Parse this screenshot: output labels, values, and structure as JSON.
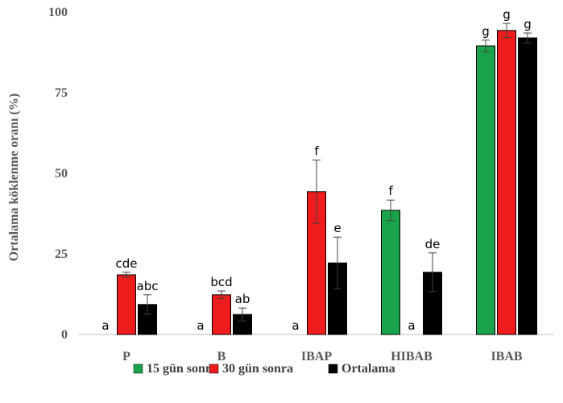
{
  "chart_data": {
    "type": "bar",
    "ylabel": "Ortalama köklenme oranı (%)",
    "xlabel": "",
    "ylim": [
      0,
      100
    ],
    "yticks": [
      0,
      25,
      50,
      75,
      100
    ],
    "grid": false,
    "legend_position": "bottom",
    "categories": [
      "P",
      "B",
      "IBAP",
      "HIBAB",
      "IBAB"
    ],
    "series": [
      {
        "name": "15 gün sonra",
        "color": "#1aa34a",
        "values": [
          0,
          0,
          0,
          38.5,
          89.5
        ],
        "errors": [
          0,
          0,
          0,
          3.2,
          1.8
        ],
        "labels": [
          "a",
          "a",
          "a",
          "f",
          "g"
        ]
      },
      {
        "name": "30 gün sonra",
        "color": "#ee1c1c",
        "values": [
          18.5,
          12.3,
          44.3,
          0,
          94.3
        ],
        "errors": [
          0.8,
          1.2,
          9.8,
          0,
          2.2
        ],
        "labels": [
          "cde",
          "bcd",
          "f",
          "a",
          "g"
        ]
      },
      {
        "name": "Ortalama",
        "color": "#000000",
        "values": [
          9.3,
          6.2,
          22.2,
          19.3,
          92.0
        ],
        "errors": [
          3.0,
          2.0,
          8.0,
          6.0,
          1.5
        ],
        "labels": [
          "abc",
          "ab",
          "e",
          "de",
          "g"
        ]
      }
    ]
  }
}
